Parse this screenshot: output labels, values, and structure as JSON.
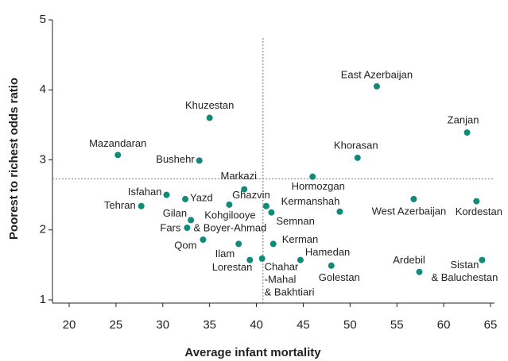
{
  "chart_data": {
    "type": "scatter",
    "x_label": "Average infant mortality",
    "y_label": "Poorest to richest odds ratio",
    "labels": [
      "East Azerbaijan",
      "Khuzestan",
      "Zanjan",
      "Mazandaran",
      "Khorasan",
      "Bushehr",
      "Hormozgan",
      "Markazi",
      "Isfahan",
      "Yazd",
      "West Azerbaijan",
      "Kordestan",
      "Tehran",
      "Ghazvin",
      [
        "Kohgilooye",
        "& Boyer-Ahmad"
      ],
      "Semnan",
      "Kermanshah",
      "Gilan",
      "Fars",
      "Qom",
      "Ilam",
      "Kerman",
      "Lorestan",
      [
        "Chahar",
        "-Mahal",
        "& Bakhtiari"
      ],
      "Hamedan",
      "Golestan",
      "Ardebil",
      [
        "Sistan",
        "& Baluchestan"
      ]
    ],
    "x": [
      52.85,
      35.0,
      62.5,
      25.2,
      50.8,
      33.9,
      46.0,
      38.7,
      30.4,
      32.4,
      56.8,
      63.5,
      27.7,
      41.05,
      37.1,
      41.6,
      48.9,
      33.0,
      32.6,
      34.3,
      38.1,
      41.8,
      39.3,
      40.6,
      44.7,
      48.0,
      57.4,
      64.1
    ],
    "values": [
      4.05,
      3.6,
      3.39,
      3.07,
      3.03,
      2.99,
      2.76,
      2.58,
      2.5,
      2.44,
      2.44,
      2.41,
      2.34,
      2.34,
      2.36,
      2.25,
      2.26,
      2.14,
      2.03,
      1.86,
      1.8,
      1.8,
      1.57,
      1.59,
      1.57,
      1.49,
      1.4,
      1.57
    ],
    "color": "#128a78",
    "reference_lines": {
      "x": 40.7,
      "y": 2.73
    },
    "xlim": [
      20,
      65
    ],
    "xticks": [
      20,
      25,
      30,
      35,
      40,
      45,
      50,
      55,
      60,
      65
    ],
    "ylim": [
      1,
      5
    ],
    "yticks": [
      1,
      2,
      3,
      4,
      5
    ]
  }
}
